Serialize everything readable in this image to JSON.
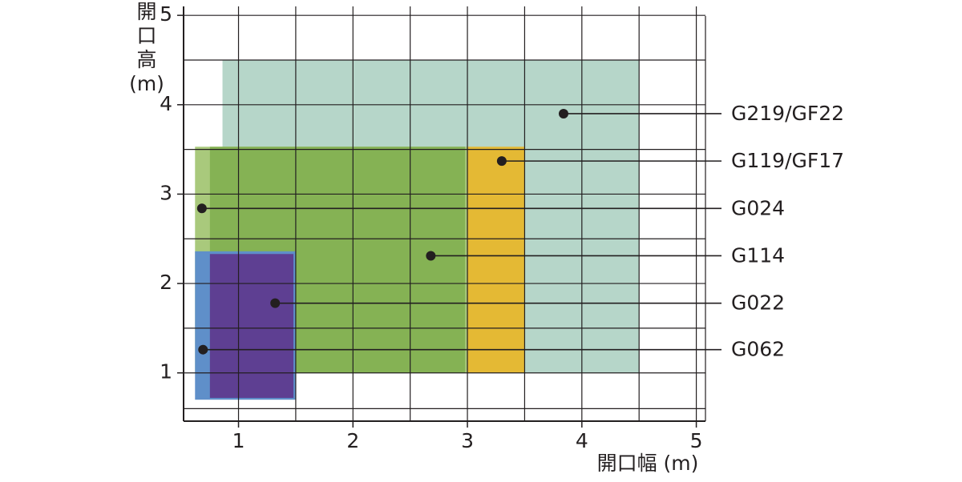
{
  "chart_data": {
    "type": "range-rect",
    "x_label": "開口幅 (m)",
    "y_label_lines": [
      "開",
      "口",
      "高",
      "(m)"
    ],
    "xlim": [
      0.52,
      5.08
    ],
    "ylim": [
      0.46,
      5.1
    ],
    "xticks": [
      1,
      2,
      3,
      4,
      5
    ],
    "yticks": [
      1,
      2,
      3,
      4,
      5
    ],
    "xgrid": [
      1,
      1.5,
      2,
      2.5,
      3,
      3.5,
      4,
      4.5,
      5
    ],
    "ygrid": [
      0.6,
      1,
      1.5,
      2,
      2.5,
      3,
      3.5,
      4,
      4.5,
      5
    ],
    "series": [
      {
        "name": "G219/GF22",
        "color": "#b6d6c9",
        "x": [
          0.86,
          4.5
        ],
        "y": [
          1,
          4.5
        ],
        "point": [
          3.84,
          3.9
        ]
      },
      {
        "name": "G119/GF17",
        "color": "#e4b934",
        "x": [
          3,
          3.5
        ],
        "y": [
          1,
          3.53
        ],
        "point": [
          3.3,
          3.37
        ]
      },
      {
        "name": "G024",
        "color": "#a9c97c",
        "x": [
          0.62,
          3
        ],
        "y": [
          1,
          3.53
        ],
        "point": [
          0.68,
          2.84
        ]
      },
      {
        "name": "G114",
        "color": "#85b254",
        "x": [
          0.75,
          2.98
        ],
        "y": [
          1,
          3.53
        ],
        "point": [
          2.68,
          2.31
        ]
      },
      {
        "name": "G062",
        "color": "#5f8fc9",
        "x": [
          0.62,
          1.5
        ],
        "y": [
          0.7,
          2.36
        ],
        "point": [
          0.69,
          1.26
        ]
      },
      {
        "name": "G022",
        "color": "#5e3f92",
        "x": [
          0.75,
          1.48
        ],
        "y": [
          0.72,
          2.33
        ],
        "point": [
          1.32,
          1.78
        ]
      }
    ]
  }
}
